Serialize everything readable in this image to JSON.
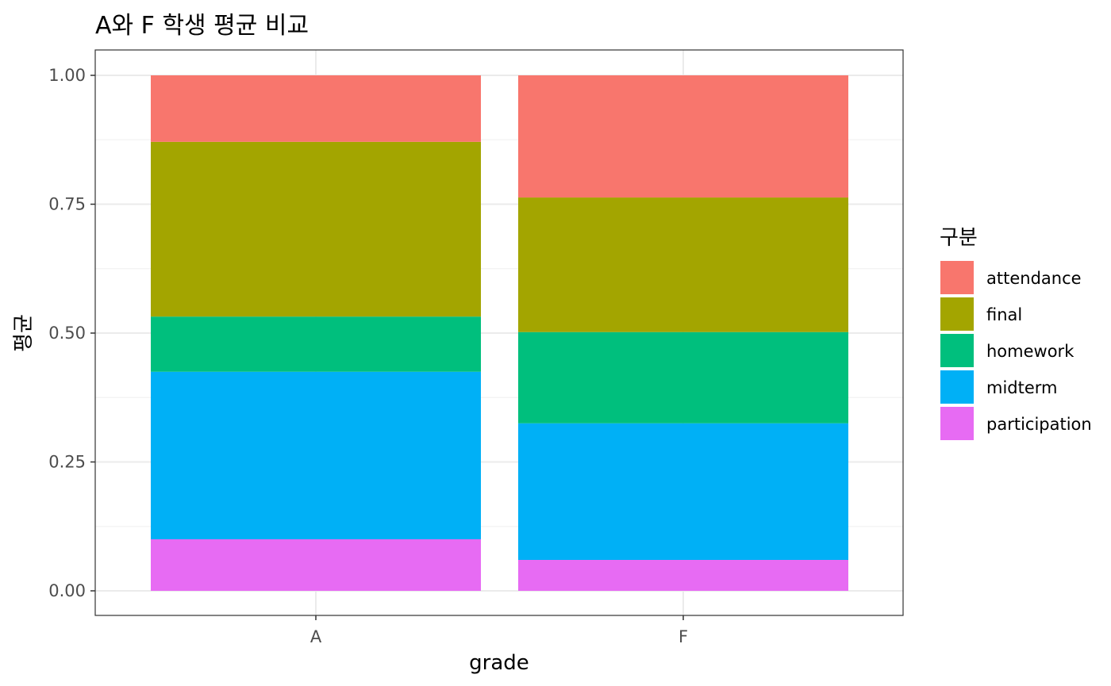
{
  "chart_data": {
    "type": "bar",
    "stacked": true,
    "title": "A와 F 학생 평균 비교",
    "xlabel": "grade",
    "ylabel": "평균",
    "categories": [
      "A",
      "F"
    ],
    "ylim": [
      0,
      1
    ],
    "yticks": [
      "0.00",
      "0.25",
      "0.50",
      "0.75",
      "1.00"
    ],
    "grid": true,
    "legend": {
      "title": "구분",
      "position": "right"
    },
    "series": [
      {
        "name": "participation",
        "color": "#E76BF3",
        "values": [
          0.1,
          0.06
        ]
      },
      {
        "name": "midterm",
        "color": "#00B0F6",
        "values": [
          0.325,
          0.265
        ]
      },
      {
        "name": "homework",
        "color": "#00BF7D",
        "values": [
          0.107,
          0.177
        ]
      },
      {
        "name": "final",
        "color": "#A3A500",
        "values": [
          0.339,
          0.261
        ]
      },
      {
        "name": "attendance",
        "color": "#F8766D",
        "values": [
          0.129,
          0.237
        ]
      }
    ],
    "legend_order": [
      "attendance",
      "final",
      "homework",
      "midterm",
      "participation"
    ]
  }
}
